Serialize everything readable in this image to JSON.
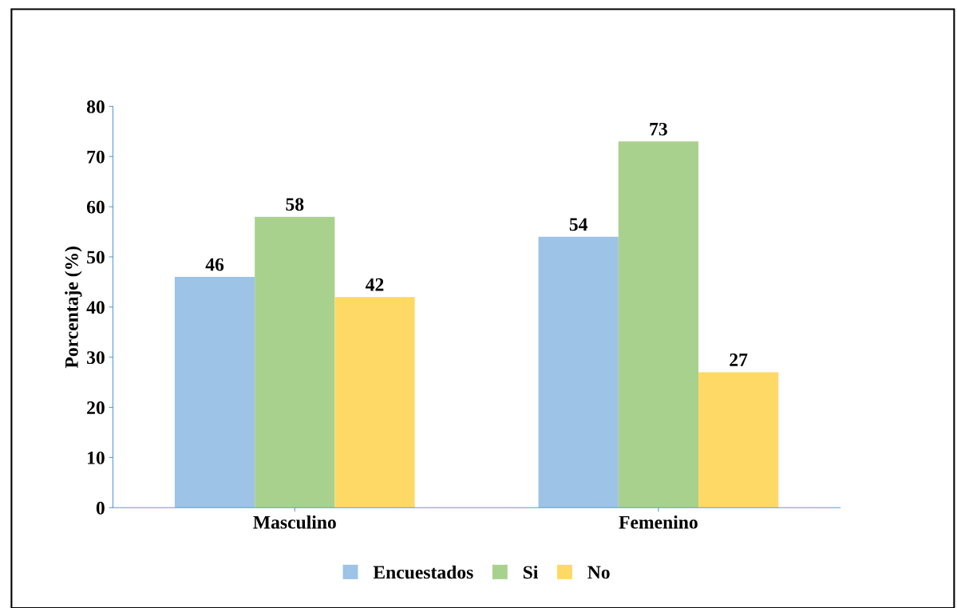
{
  "chart_data": {
    "type": "bar",
    "ylabel": "Porcentaje (%)",
    "categories": [
      "Masculino",
      "Femenino"
    ],
    "series": [
      {
        "name": "Encuestados",
        "color": "#9dc3e6",
        "values": [
          46,
          54
        ]
      },
      {
        "name": "Si",
        "color": "#a9d18e",
        "values": [
          58,
          73
        ]
      },
      {
        "name": "No",
        "color": "#ffd966",
        "values": [
          42,
          27
        ]
      }
    ],
    "ylim": [
      0,
      80
    ],
    "yticks": [
      0,
      10,
      20,
      30,
      40,
      50,
      60,
      70,
      80
    ],
    "data_labels": true,
    "legend": "bottom",
    "grid": false
  }
}
